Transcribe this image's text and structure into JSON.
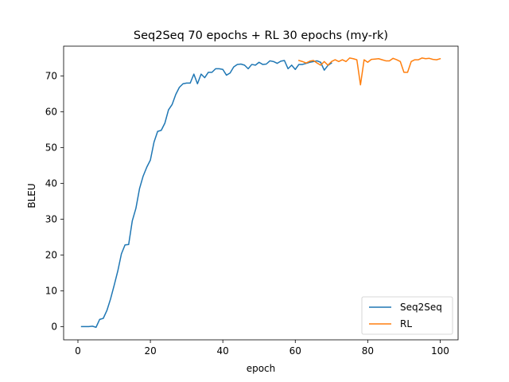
{
  "chart_data": {
    "type": "line",
    "title": "Seq2Seq 70 epochs + RL 30 epochs (my-rk)",
    "xlabel": "epoch",
    "ylabel": "BLEU",
    "xlim": [
      -3.95,
      104.95
    ],
    "ylim": [
      -3.7,
      78.3
    ],
    "xticks": [
      0,
      20,
      40,
      60,
      80,
      100
    ],
    "yticks": [
      0,
      10,
      20,
      30,
      40,
      50,
      60,
      70
    ],
    "legend_position": "lower-right",
    "series": [
      {
        "name": "Seq2Seq",
        "color": "#1f77b4",
        "x": [
          1,
          2,
          3,
          4,
          5,
          6,
          7,
          8,
          9,
          10,
          11,
          12,
          13,
          14,
          15,
          16,
          17,
          18,
          19,
          20,
          21,
          22,
          23,
          24,
          25,
          26,
          27,
          28,
          29,
          30,
          31,
          32,
          33,
          34,
          35,
          36,
          37,
          38,
          39,
          40,
          41,
          42,
          43,
          44,
          45,
          46,
          47,
          48,
          49,
          50,
          51,
          52,
          53,
          54,
          55,
          56,
          57,
          58,
          59,
          60,
          61,
          62,
          63,
          64,
          65,
          66,
          67,
          68,
          69,
          70
        ],
        "values": [
          0.0,
          0.0,
          0.0,
          0.1,
          -0.2,
          2.0,
          2.3,
          4.5,
          7.7,
          11.5,
          15.5,
          20.3,
          22.8,
          22.9,
          29.5,
          33.0,
          38.5,
          42.0,
          44.5,
          46.5,
          51.5,
          54.5,
          54.8,
          56.8,
          60.5,
          62.0,
          64.8,
          66.8,
          67.8,
          68.0,
          68.0,
          70.5,
          67.8,
          70.5,
          69.5,
          71.0,
          71.0,
          72.0,
          72.0,
          71.8,
          70.2,
          70.8,
          72.5,
          73.2,
          73.3,
          73.0,
          72.0,
          73.2,
          73.0,
          73.8,
          73.2,
          73.3,
          74.2,
          74.0,
          73.5,
          74.1,
          74.3,
          72.0,
          73.0,
          71.8,
          73.2,
          73.2,
          73.5,
          73.8,
          74.0,
          74.2,
          73.8,
          71.6,
          72.9,
          73.6
        ]
      },
      {
        "name": "RL",
        "color": "#ff7f0e",
        "x": [
          61,
          62,
          63,
          64,
          65,
          66,
          67,
          68,
          69,
          70,
          71,
          72,
          73,
          74,
          75,
          76,
          77,
          78,
          79,
          80,
          81,
          82,
          83,
          84,
          85,
          86,
          87,
          88,
          89,
          90,
          91,
          92,
          93,
          94,
          95,
          96,
          97,
          98,
          99,
          100
        ],
        "values": [
          74.3,
          74.0,
          73.6,
          74.1,
          74.3,
          73.6,
          73.0,
          74.0,
          73.0,
          74.0,
          74.5,
          74.0,
          74.5,
          74.0,
          75.0,
          74.8,
          74.5,
          67.5,
          74.5,
          73.8,
          74.6,
          74.7,
          74.8,
          74.5,
          74.2,
          74.2,
          74.9,
          74.5,
          74.0,
          71.0,
          71.0,
          74.0,
          74.5,
          74.5,
          75.0,
          74.8,
          74.9,
          74.6,
          74.5,
          74.8
        ]
      }
    ]
  }
}
